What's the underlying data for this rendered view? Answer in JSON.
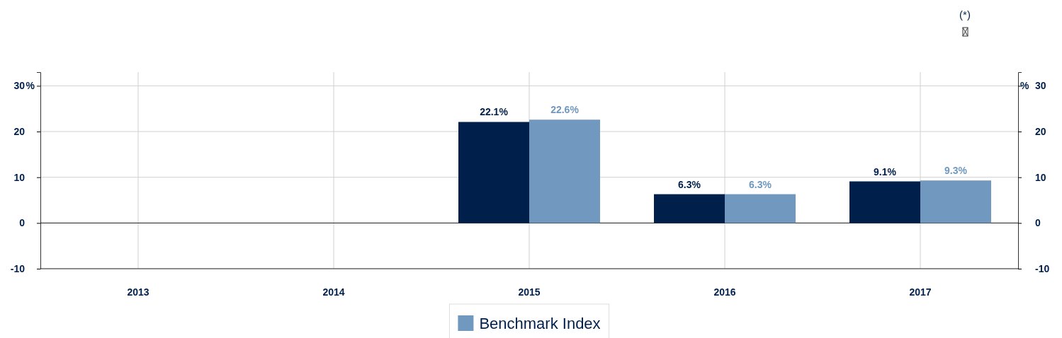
{
  "chart_data": {
    "type": "bar",
    "categories": [
      "2013",
      "2014",
      "2015",
      "2016",
      "2017"
    ],
    "series": [
      {
        "color": "#001f4b",
        "values": [
          null,
          null,
          22.1,
          6.3,
          9.1
        ],
        "value_labels": [
          null,
          null,
          "22.1%",
          "6.3%",
          "9.1%"
        ]
      },
      {
        "name": "Benchmark Index",
        "color": "#7198be",
        "values": [
          null,
          null,
          22.6,
          6.3,
          9.3
        ],
        "value_labels": [
          null,
          null,
          "22.6%",
          "6.3%",
          "9.3%"
        ]
      }
    ],
    "ylim": [
      -10,
      33
    ],
    "yticks": [
      -10,
      0,
      10,
      20,
      30
    ],
    "y2lim": [
      -10,
      33
    ],
    "y2ticks": [
      -10,
      0,
      10,
      20,
      30
    ],
    "ylabel": "%",
    "y2label": "%",
    "grid": true,
    "legend": "bottom",
    "annotations": [
      "(*)"
    ]
  }
}
